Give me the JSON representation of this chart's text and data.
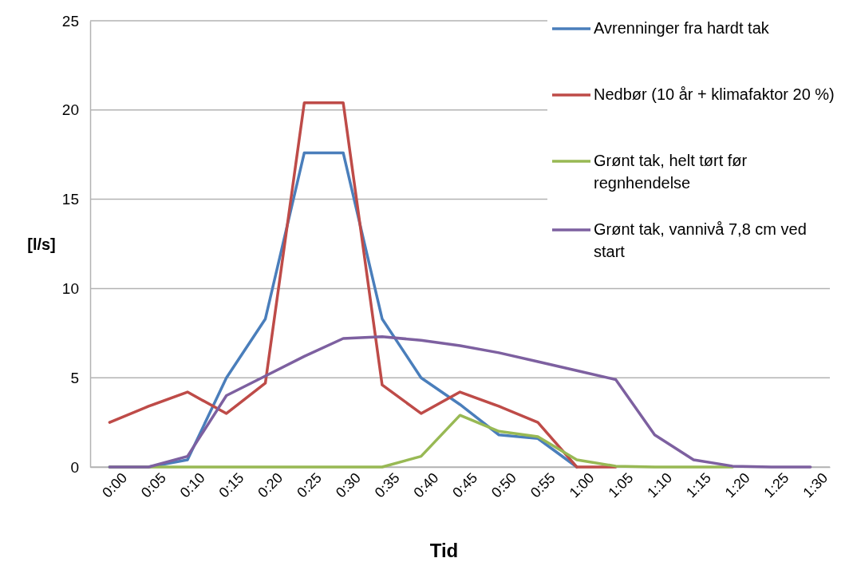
{
  "chart_data": {
    "type": "line",
    "xlabel": "Tid",
    "ylabel": "[l/s]",
    "categories": [
      "0:00",
      "0:05",
      "0:10",
      "0:15",
      "0:20",
      "0:25",
      "0:30",
      "0:35",
      "0:40",
      "0:45",
      "0:50",
      "0:55",
      "1:00",
      "1:05",
      "1:10",
      "1:15",
      "1:20",
      "1:25",
      "1:30"
    ],
    "series": [
      {
        "name": "Avrenninger fra hardt tak",
        "color": "#4a7ebb",
        "values": [
          0,
          0,
          0.4,
          5,
          8.3,
          17.6,
          17.6,
          8.3,
          5,
          3.5,
          1.8,
          1.6,
          0,
          null,
          null,
          null,
          null,
          null,
          null
        ]
      },
      {
        "name": "Nedbør (10 år + klimafaktor 20 %)",
        "color": "#be4b48",
        "values": [
          2.5,
          3.4,
          4.2,
          3,
          4.7,
          20.4,
          20.4,
          4.6,
          3,
          4.2,
          3.4,
          2.5,
          0,
          0,
          null,
          null,
          null,
          null,
          null
        ]
      },
      {
        "name": "Grønt tak, helt tørt før regnhendelse",
        "color": "#98b954",
        "values": [
          0,
          0,
          0,
          0,
          0,
          0,
          0,
          0,
          0.6,
          2.9,
          2,
          1.7,
          0.4,
          0.05,
          0,
          0,
          0,
          null,
          null
        ]
      },
      {
        "name": "Grønt tak, vannivå 7,8 cm ved start",
        "color": "#7d60a0",
        "values": [
          0,
          0,
          0.6,
          4,
          5.1,
          6.2,
          7.2,
          7.3,
          7.1,
          6.8,
          6.4,
          5.9,
          5.4,
          4.9,
          1.8,
          0.4,
          0.05,
          0,
          0
        ]
      }
    ],
    "ylim": [
      0,
      25
    ],
    "yticks": [
      0,
      5,
      10,
      15,
      20,
      25
    ],
    "grid": "y",
    "legend": "top right",
    "marker": "none",
    "line_style": "solid"
  }
}
